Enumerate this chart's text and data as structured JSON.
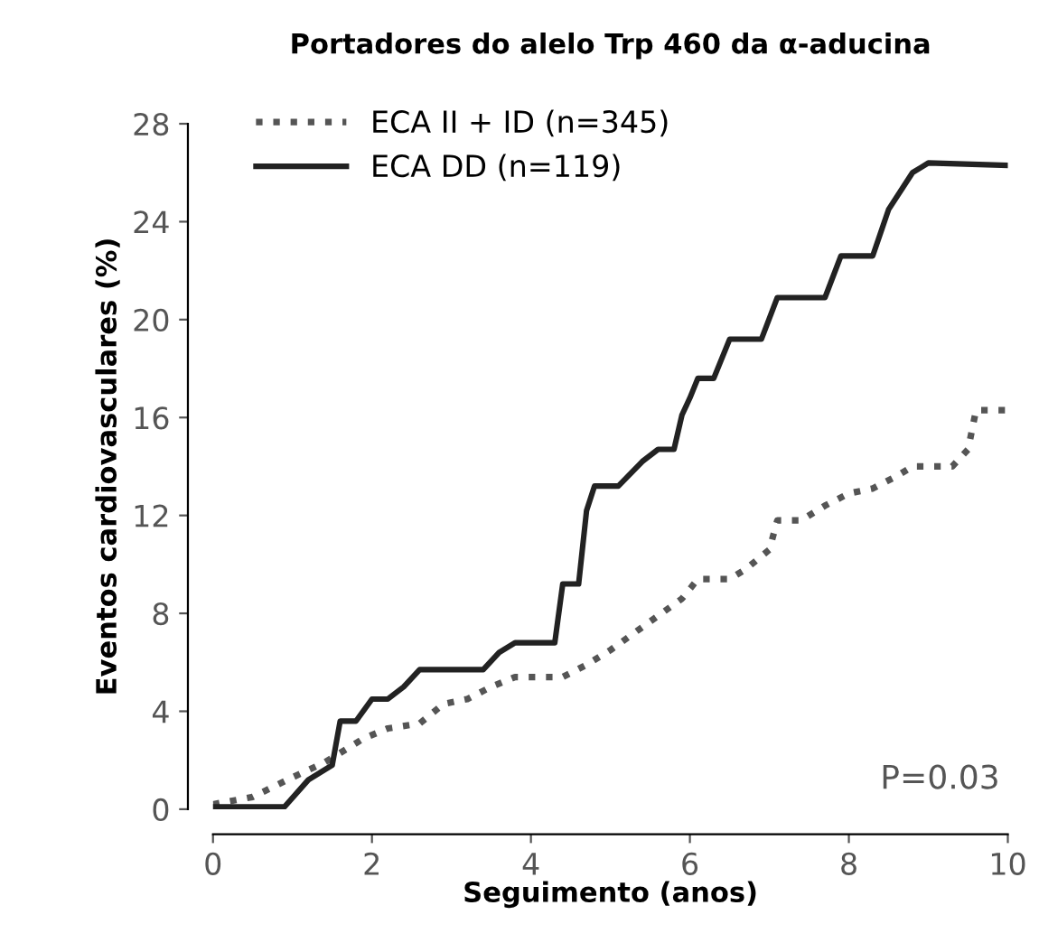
{
  "chart_data": {
    "type": "line",
    "title": "Portadores do alelo Trp 460 da α-aducina",
    "xlabel": "Seguimento (anos)",
    "ylabel": "Eventos cardiovasculares (%)",
    "xlim": [
      0,
      10
    ],
    "xticks": [
      0,
      2,
      4,
      6,
      8,
      10
    ],
    "ylim": [
      0,
      28
    ],
    "yticks": [
      0,
      4,
      8,
      12,
      16,
      20,
      24,
      28
    ],
    "grid": false,
    "legend": "top left",
    "annotations": [
      "P=0.03"
    ],
    "series": [
      {
        "name": "ECA II + ID (n=345)",
        "color": "#555555",
        "line_style": "dotted",
        "x": [
          0,
          0.5,
          1.0,
          1.4,
          1.6,
          1.9,
          2.2,
          2.6,
          2.9,
          3.2,
          3.5,
          3.8,
          4.4,
          4.7,
          5.0,
          5.3,
          5.6,
          5.9,
          6.1,
          6.5,
          6.7,
          7.0,
          7.1,
          7.4,
          7.7,
          8.0,
          8.3,
          8.6,
          8.8,
          9.3,
          9.5,
          9.6,
          10
        ],
        "values": [
          0.2,
          0.5,
          1.3,
          1.9,
          2.3,
          2.9,
          3.3,
          3.5,
          4.3,
          4.5,
          5.0,
          5.4,
          5.4,
          5.9,
          6.5,
          7.2,
          7.9,
          8.6,
          9.4,
          9.4,
          9.8,
          10.6,
          11.8,
          11.8,
          12.4,
          12.9,
          13.1,
          13.6,
          14.0,
          14.0,
          14.7,
          16.3,
          16.3
        ]
      },
      {
        "name": "ECA DD (n=119)",
        "color": "#222222",
        "line_style": "solid",
        "x": [
          0,
          0.9,
          1.2,
          1.5,
          1.6,
          1.8,
          2.0,
          2.2,
          2.4,
          2.6,
          3.4,
          3.6,
          3.8,
          4.3,
          4.4,
          4.6,
          4.7,
          4.8,
          5.1,
          5.4,
          5.6,
          5.8,
          5.9,
          6.0,
          6.1,
          6.3,
          6.5,
          6.9,
          7.1,
          7.7,
          7.9,
          8.3,
          8.5,
          8.8,
          9.0,
          10
        ],
        "values": [
          0.1,
          0.1,
          1.2,
          1.8,
          3.6,
          3.6,
          4.5,
          4.5,
          5.0,
          5.7,
          5.7,
          6.4,
          6.8,
          6.8,
          9.2,
          9.2,
          12.2,
          13.2,
          13.2,
          14.2,
          14.7,
          14.7,
          16.1,
          16.8,
          17.6,
          17.6,
          19.2,
          19.2,
          20.9,
          20.9,
          22.6,
          22.6,
          24.5,
          26.0,
          26.4,
          26.3
        ]
      }
    ]
  }
}
